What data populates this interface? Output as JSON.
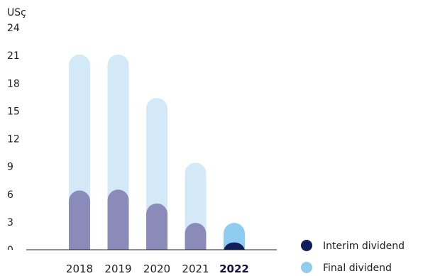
{
  "chart_data": {
    "type": "bar",
    "stacked": true,
    "unit_label": "USç",
    "categories": [
      "2018",
      "2019",
      "2020",
      "2021",
      "2022"
    ],
    "highlight_category": "2022",
    "series": [
      {
        "name": "Interim dividend",
        "values": [
          6.4,
          6.5,
          5.0,
          2.9,
          0.8
        ],
        "color_current": "#0f1f5c",
        "color_prior": "#8b8bba"
      },
      {
        "name": "Final dividend",
        "values": [
          14.7,
          14.6,
          11.4,
          6.5,
          2.1
        ],
        "color_current": "#8ecdf0",
        "color_prior": "#d3e9f7"
      }
    ],
    "ylim": [
      0,
      24
    ],
    "yticks": [
      0,
      3,
      6,
      9,
      12,
      15,
      18,
      21,
      24
    ],
    "grid": false,
    "legend_position": "bottom-right"
  }
}
